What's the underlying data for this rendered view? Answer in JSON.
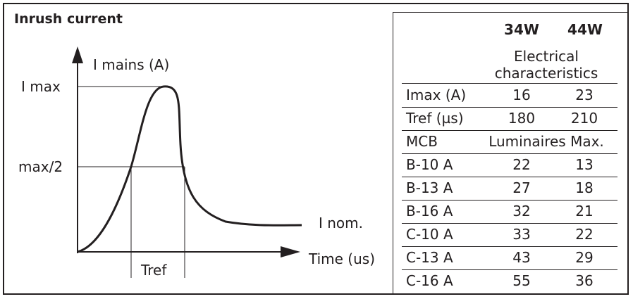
{
  "title": "Inrush current",
  "diagram": {
    "y_axis_label": "I mains (A)",
    "x_axis_label": "Time (us)",
    "imax_label": "I max",
    "half_label": "max/2",
    "inom_label": "I nom.",
    "tref_label": "Tref"
  },
  "table": {
    "col_headers": [
      "34W",
      "44W"
    ],
    "group_header_line1": "Electrical",
    "group_header_line2": "characteristics",
    "rows_top": [
      {
        "label": "Imax (A)",
        "v34": "16",
        "v44": "23"
      },
      {
        "label": "Tref (µs)",
        "v34": "180",
        "v44": "210"
      }
    ],
    "mcb_label": "MCB",
    "mcb_span": "Luminaires Max.",
    "rows_mcb": [
      {
        "label": "B-10 A",
        "v34": "22",
        "v44": "13"
      },
      {
        "label": "B-13 A",
        "v34": "27",
        "v44": "18"
      },
      {
        "label": "B-16 A",
        "v34": "32",
        "v44": "21"
      },
      {
        "label": "C-10 A",
        "v34": "33",
        "v44": "22"
      },
      {
        "label": "C-13 A",
        "v34": "43",
        "v44": "29"
      },
      {
        "label": "C-16 A",
        "v34": "55",
        "v44": "36"
      }
    ]
  }
}
